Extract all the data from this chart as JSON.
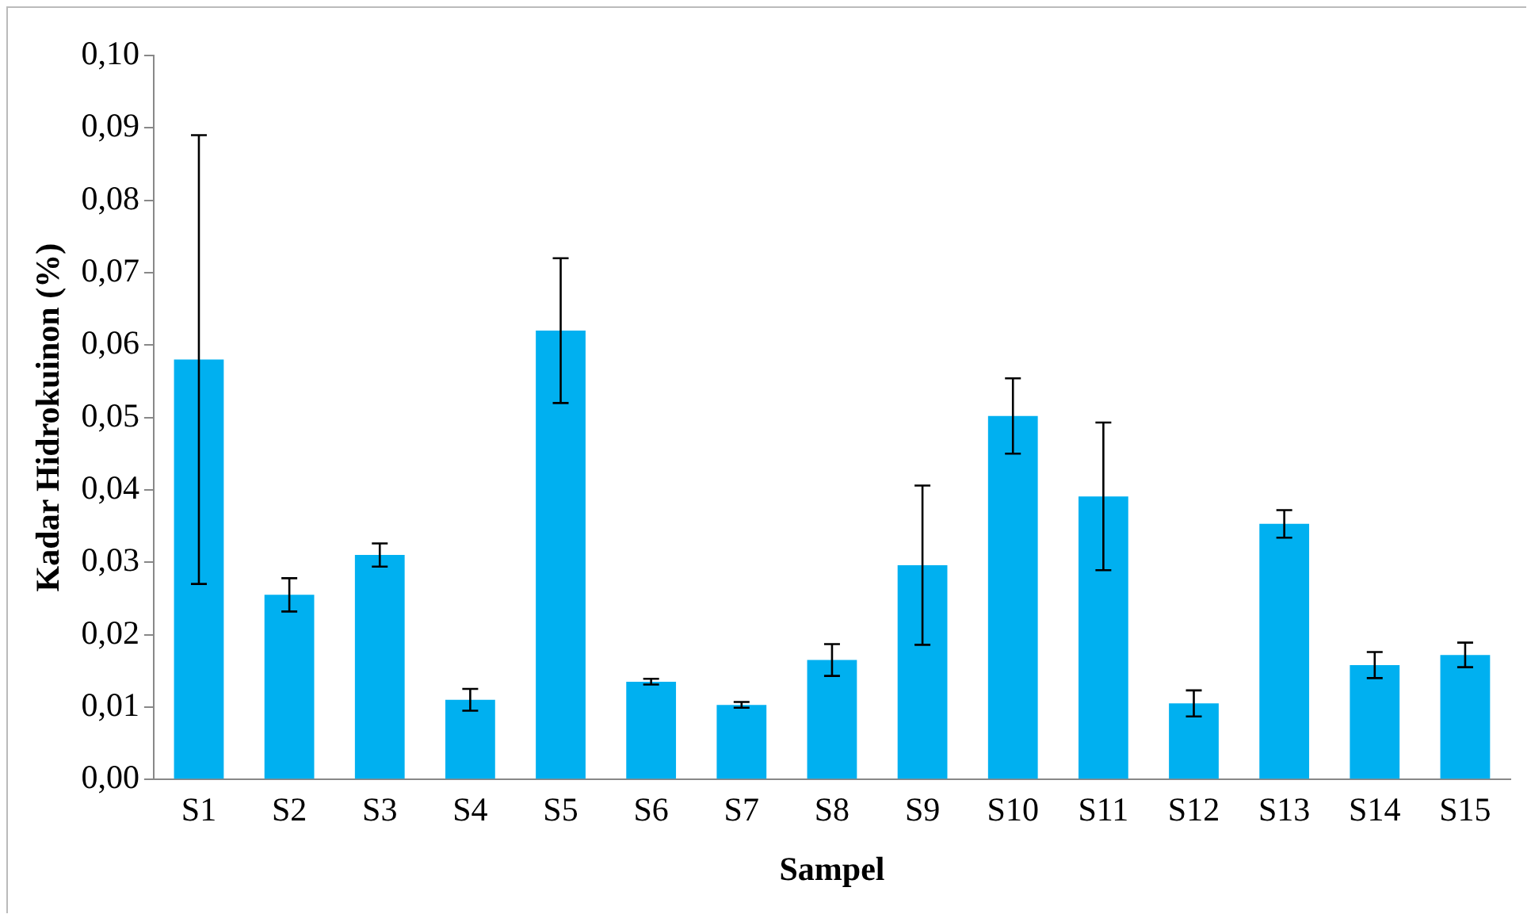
{
  "chart_data": {
    "type": "bar",
    "xlabel": "Sampel",
    "ylabel": "Kadar Hidrokuinon (%)",
    "categories": [
      "S1",
      "S2",
      "S3",
      "S4",
      "S5",
      "S6",
      "S7",
      "S8",
      "S9",
      "S10",
      "S11",
      "S12",
      "S13",
      "S14",
      "S15"
    ],
    "values": [
      0.058,
      0.0255,
      0.031,
      0.011,
      0.062,
      0.0135,
      0.0103,
      0.0165,
      0.0296,
      0.0502,
      0.0391,
      0.0105,
      0.0353,
      0.0158,
      0.0172
    ],
    "errors": [
      0.031,
      0.0023,
      0.0016,
      0.0015,
      0.01,
      0.0004,
      0.0004,
      0.0022,
      0.011,
      0.0052,
      0.0102,
      0.0018,
      0.0019,
      0.0018,
      0.0017
    ],
    "color": "#00b0f0",
    "ylim": [
      0,
      0.1
    ],
    "yticks": [
      {
        "value": 0,
        "label": "0,00"
      },
      {
        "value": 0.01,
        "label": "0,01"
      },
      {
        "value": 0.02,
        "label": "0,02"
      },
      {
        "value": 0.03,
        "label": "0,03"
      },
      {
        "value": 0.04,
        "label": "0,04"
      },
      {
        "value": 0.05,
        "label": "0,05"
      },
      {
        "value": 0.06,
        "label": "0,06"
      },
      {
        "value": 0.07,
        "label": "0,07"
      },
      {
        "value": 0.08,
        "label": "0,08"
      },
      {
        "value": 0.09,
        "label": "0,09"
      },
      {
        "value": 0.1,
        "label": "0,10"
      }
    ],
    "grid": false,
    "legend": false
  }
}
